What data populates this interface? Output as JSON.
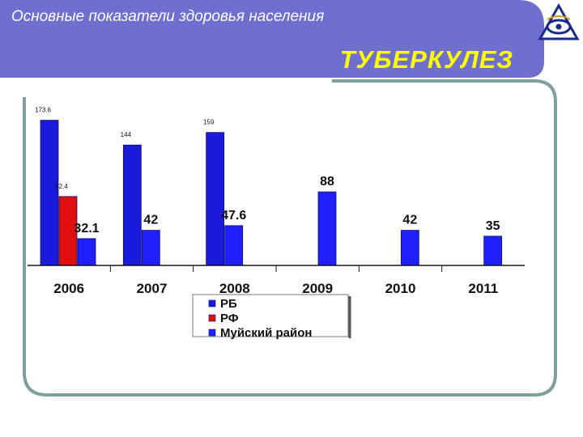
{
  "header": {
    "title": "Основные показатели здоровья населения",
    "section": "ТУБЕРКУЛЕЗ"
  },
  "colors": {
    "band": "#6f6fd0",
    "frame": "#7f9f9f",
    "rb": "#1a1adc",
    "rf": "#e01010",
    "muya": "#2020ff",
    "section_title": "#ffff00"
  },
  "chart_data": {
    "type": "bar",
    "categories": [
      "2006",
      "2007",
      "2008",
      "2009",
      "2010",
      "2011"
    ],
    "series": [
      {
        "name": "РБ",
        "values": [
          173.6,
          144,
          159,
          null,
          null,
          null
        ],
        "labels": [
          "173.6",
          "144",
          "159",
          "",
          "",
          ""
        ]
      },
      {
        "name": "РФ",
        "values": [
          82.4,
          null,
          null,
          null,
          null,
          null
        ],
        "labels": [
          "82.4",
          "",
          "",
          "",
          "",
          ""
        ]
      },
      {
        "name": "Муйский район",
        "values": [
          32.1,
          42,
          47.6,
          88,
          42,
          35
        ],
        "labels": [
          "32.1",
          "42",
          "47.6",
          "88",
          "42",
          "35"
        ]
      }
    ],
    "ylim": [
      0,
      180
    ],
    "grid": false,
    "legend": "bottom-center"
  }
}
